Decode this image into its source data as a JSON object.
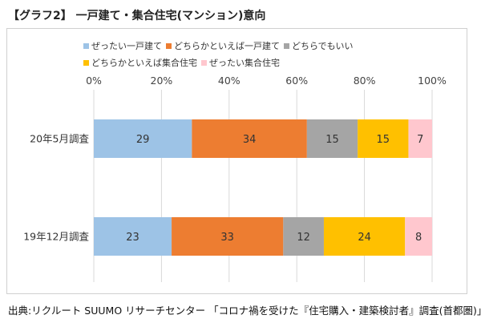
{
  "title": "【グラフ2】 一戸建て・集合住宅(マンション)意向",
  "source": "出典:リクルート SUUMO リサーチセンター 「コロナ禍を受けた『住宅購入・建築検討者』調査(首都圏)」",
  "chart_data": {
    "type": "bar",
    "orientation": "horizontal",
    "stacked": true,
    "percent": true,
    "xlim": [
      0,
      100
    ],
    "xticks": [
      "0%",
      "20%",
      "40%",
      "60%",
      "80%",
      "100%"
    ],
    "grid": true,
    "legend_position": "top",
    "categories": [
      "20年5月調査",
      "19年12月調査"
    ],
    "series": [
      {
        "name": "ぜったい一戸建て",
        "color": "#9DC3E6",
        "values": [
          29,
          23
        ]
      },
      {
        "name": "どちらかといえば一戸建て",
        "color": "#ED7D31",
        "values": [
          34,
          33
        ]
      },
      {
        "name": "どちらでもいい",
        "color": "#A5A5A5",
        "values": [
          15,
          12
        ]
      },
      {
        "name": "どちらかといえば集合住宅",
        "color": "#FFC000",
        "values": [
          15,
          24
        ]
      },
      {
        "name": "ぜったい集合住宅",
        "color": "#FFC7CE",
        "values": [
          7,
          8
        ]
      }
    ]
  }
}
